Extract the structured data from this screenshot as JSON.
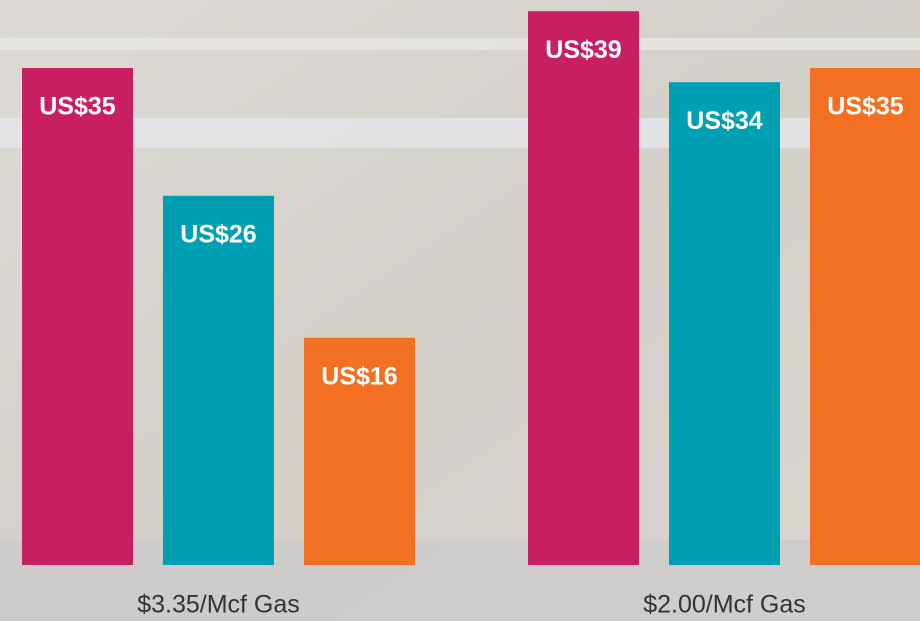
{
  "chart_data": {
    "type": "bar",
    "categories": [
      "$3.35/Mcf Gas",
      "$2.00/Mcf Gas"
    ],
    "series": [
      {
        "color": "#c81e63",
        "values": [
          35,
          39
        ],
        "value_labels": [
          "US$35",
          "US$39"
        ]
      },
      {
        "color": "#00a0b4",
        "values": [
          26,
          34
        ],
        "value_labels": [
          "US$26",
          "US$34"
        ]
      },
      {
        "color": "#f36f21",
        "values": [
          16,
          35
        ],
        "value_labels": [
          "US$16",
          "US$35"
        ]
      }
    ]
  }
}
